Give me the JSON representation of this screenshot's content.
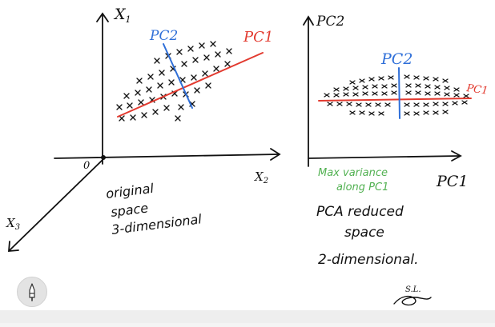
{
  "left_diagram": {
    "axis_x1": "X",
    "axis_x1_sub": "1",
    "axis_x2": "X",
    "axis_x2_sub": "2",
    "axis_x3": "X",
    "axis_x3_sub": "3",
    "origin": "0",
    "pc1": "PC1",
    "pc2": "PC2",
    "caption_lines": [
      "original",
      "space",
      "3-dimensional"
    ]
  },
  "right_diagram": {
    "axis_y": "PC2",
    "axis_x": "PC1",
    "pc2": "PC2",
    "pc1": "PC1",
    "note_lines": [
      "Max variance",
      "along PC1"
    ],
    "caption_lines": [
      "PCA reduced",
      "space",
      "2-dimensional."
    ]
  },
  "signature": "S.L.",
  "colors": {
    "ink": "#111111",
    "pc1": "#e23a2f",
    "pc2": "#2f6fd8",
    "note": "#52b152"
  },
  "tool_icon": "pen-tool-icon"
}
